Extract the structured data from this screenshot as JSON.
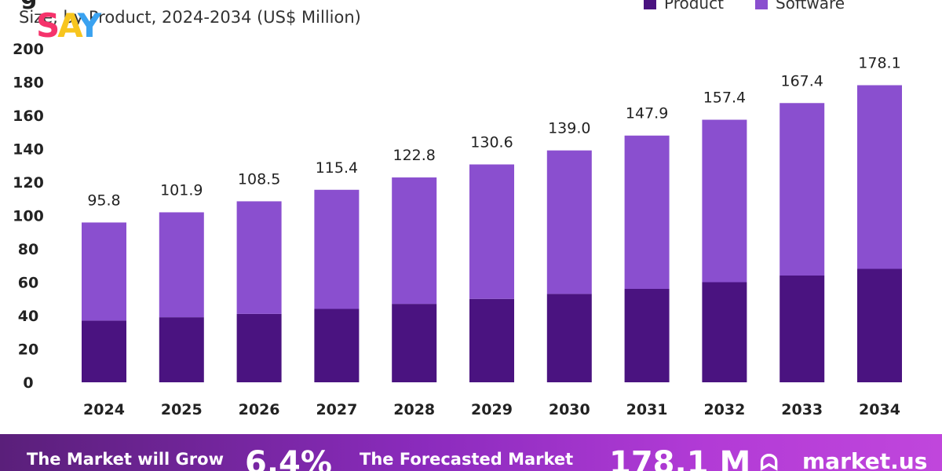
{
  "header": {
    "title_fragment": "g",
    "subtitle": "Size, by Product, 2024-2034 (US$ Million)",
    "watermark": {
      "s": "S",
      "a": "A",
      "y": "Y"
    }
  },
  "legend": [
    {
      "label": "Product",
      "color": "#4a1380"
    },
    {
      "label": "Software",
      "color": "#8a4fcf"
    }
  ],
  "chart_data": {
    "type": "bar",
    "stacked": true,
    "categories": [
      "2024",
      "2025",
      "2026",
      "2027",
      "2028",
      "2029",
      "2030",
      "2031",
      "2032",
      "2033",
      "2034"
    ],
    "series": [
      {
        "name": "Product",
        "color": "#4a1380",
        "values": [
          37,
          39,
          41,
          44,
          47,
          50,
          53,
          56,
          60,
          64,
          68
        ]
      },
      {
        "name": "Software",
        "color": "#8a4fcf",
        "values": [
          58.8,
          62.9,
          67.5,
          71.4,
          75.8,
          80.6,
          86.0,
          91.9,
          97.4,
          103.4,
          110.1
        ]
      }
    ],
    "totals": [
      95.8,
      101.9,
      108.5,
      115.4,
      122.8,
      130.6,
      139.0,
      147.9,
      157.4,
      167.4,
      178.1
    ],
    "total_labels": [
      "95.8",
      "101.9",
      "108.5",
      "115.4",
      "122.8",
      "130.6",
      "139.0",
      "147.9",
      "157.4",
      "167.4",
      "178.1"
    ],
    "y_ticks": [
      "0",
      "20",
      "40",
      "60",
      "80",
      "100",
      "120",
      "140",
      "160",
      "180",
      "200"
    ],
    "ylim": [
      0,
      200
    ],
    "grid": false,
    "legend_position": "top-right"
  },
  "banner": {
    "grow_text": "The Market will Grow",
    "cagr": "6.4%",
    "forecast_text": "The Forecasted Market",
    "forecast_value": "178.1 M",
    "logo_icon": "ᗣ",
    "logo_text": "market.us"
  }
}
